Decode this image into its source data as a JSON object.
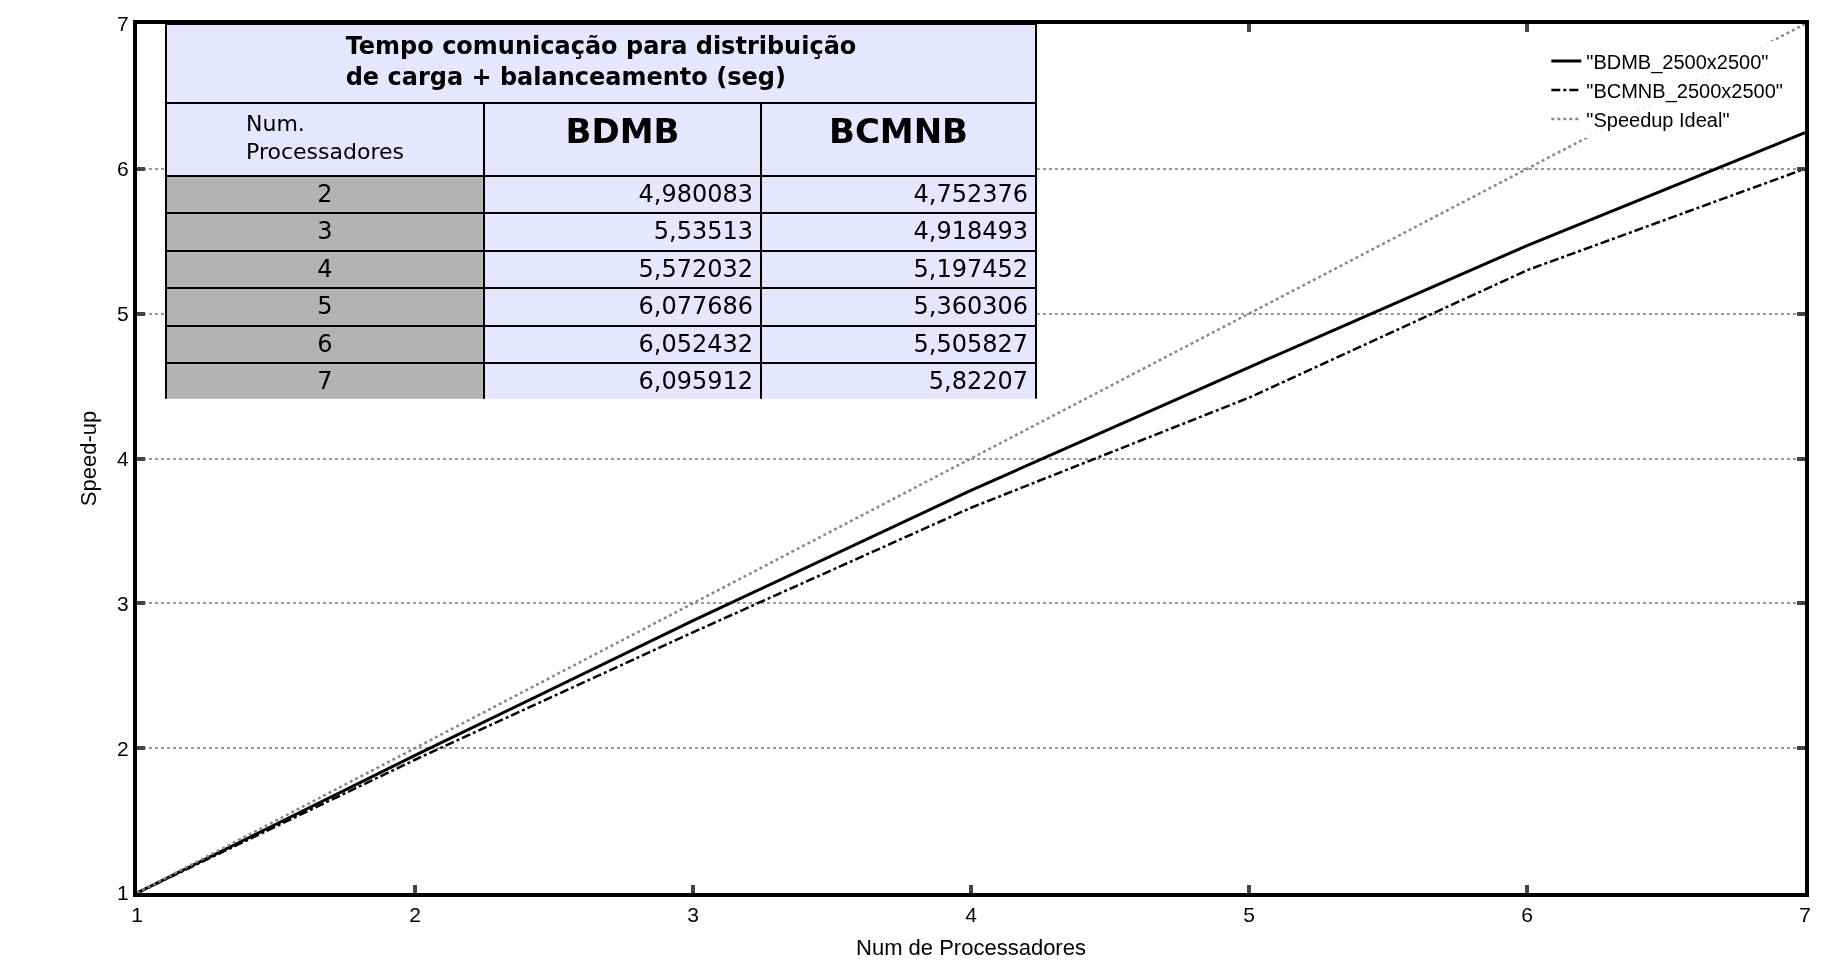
{
  "chart_data": {
    "type": "line",
    "xlabel": "Num de Processadores",
    "ylabel": "Speed-up",
    "x": [
      1,
      2,
      3,
      4,
      5,
      6,
      7
    ],
    "xlim": [
      1,
      7
    ],
    "ylim": [
      1,
      7
    ],
    "xticks": [
      1,
      2,
      3,
      4,
      5,
      6,
      7
    ],
    "yticks": [
      1,
      2,
      3,
      4,
      5,
      6,
      7
    ],
    "grid": "y",
    "legend": "top right",
    "marker": "none",
    "series": [
      {
        "name": "\"BDMB_2500x2500\"",
        "color": "#000000",
        "line_style": "solid",
        "values": [
          1,
          1.95,
          2.88,
          3.78,
          4.63,
          5.47,
          6.25
        ]
      },
      {
        "name": "\"BCMNB_2500x2500\"",
        "color": "#000000",
        "line_style": "dashed",
        "values": [
          1,
          1.92,
          2.8,
          3.66,
          4.42,
          5.3,
          6.0
        ]
      },
      {
        "name": "\"Speedup Ideal\"",
        "color": "#888888",
        "line_style": "dotted",
        "values": [
          1,
          2,
          3,
          4,
          5,
          6,
          7
        ]
      }
    ],
    "annotations": [
      "Tempo comunicação para distribuição de carga + balanceamento (seg)",
      "Num. Processadores",
      "BDMB",
      "BCMNB",
      "2",
      "4,980083",
      "4,752376",
      "3",
      "5,53513",
      "4,918493",
      "4",
      "5,572032",
      "5,197452",
      "5",
      "6,077686",
      "5,360306",
      "6",
      "6,052432",
      "5,505827",
      "7",
      "6,095912",
      "5,82207"
    ]
  }
}
